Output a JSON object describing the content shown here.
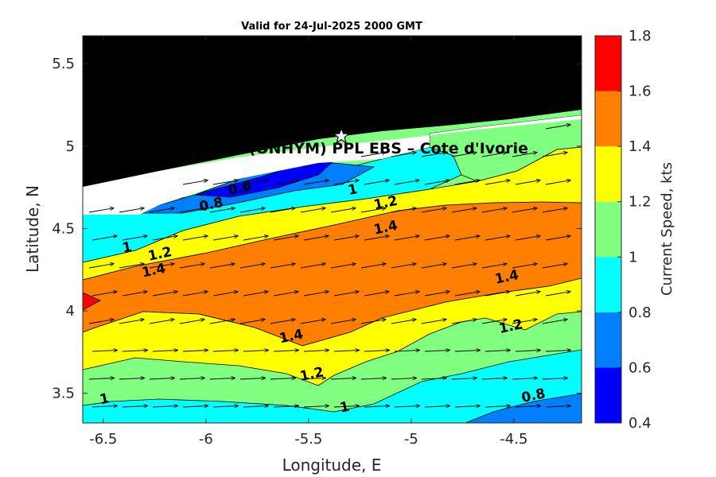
{
  "chart_data": {
    "type": "heatmap",
    "title": "Valid for 24-Jul-2025 2000 GMT",
    "xlabel": "Longitude, E",
    "ylabel": "Latitude, N",
    "xlim": [
      -6.6,
      -4.17
    ],
    "ylim": [
      3.32,
      5.67
    ],
    "x_ticks": [
      "-6.5",
      "-6",
      "-5.5",
      "-5",
      "-4.5"
    ],
    "x_tick_values": [
      -6.5,
      -6,
      -5.5,
      -5,
      -4.5
    ],
    "y_ticks": [
      "3.5",
      "4",
      "4.5",
      "5",
      "5.5"
    ],
    "y_tick_values": [
      3.5,
      4,
      4.5,
      5,
      5.5
    ],
    "colorbar": {
      "label": "Current Speed, kts",
      "ticks": [
        "0.4",
        "0.6",
        "0.8",
        "1",
        "1.2",
        "1.4",
        "1.6",
        "1.8"
      ],
      "levels": [
        0.4,
        0.6,
        0.8,
        1.0,
        1.2,
        1.4,
        1.6,
        1.8
      ],
      "colors": [
        "#0000ff",
        "#0080ff",
        "#00ffff",
        "#80ff80",
        "#ffff00",
        "#ff8000",
        "#ff0000"
      ]
    },
    "land_color": "#000000",
    "site_label": "(ONHYM) PPL EBS  – Cote d'Ivorie",
    "site_marker": {
      "lon": -5.34,
      "lat": 5.06
    },
    "contour_labels": [
      {
        "text": "0.6",
        "lon": -5.83,
        "lat": 4.72
      },
      {
        "text": "0.8",
        "lon": -5.97,
        "lat": 4.62
      },
      {
        "text": "1",
        "lon": -5.28,
        "lat": 4.71
      },
      {
        "text": "1.2",
        "lon": -5.12,
        "lat": 4.63
      },
      {
        "text": "1.4",
        "lon": -5.12,
        "lat": 4.48
      },
      {
        "text": "1",
        "lon": -6.38,
        "lat": 4.36
      },
      {
        "text": "1.2",
        "lon": -6.22,
        "lat": 4.32
      },
      {
        "text": "1.4",
        "lon": -6.25,
        "lat": 4.22
      },
      {
        "text": "1.4",
        "lon": -4.53,
        "lat": 4.18
      },
      {
        "text": "1.4",
        "lon": -5.58,
        "lat": 3.82
      },
      {
        "text": "1.2",
        "lon": -4.51,
        "lat": 3.88
      },
      {
        "text": "1.2",
        "lon": -5.48,
        "lat": 3.59
      },
      {
        "text": "1",
        "lon": -6.49,
        "lat": 3.44
      },
      {
        "text": "1",
        "lon": -5.32,
        "lat": 3.39
      },
      {
        "text": "0.8",
        "lon": -4.4,
        "lat": 3.46
      }
    ]
  }
}
